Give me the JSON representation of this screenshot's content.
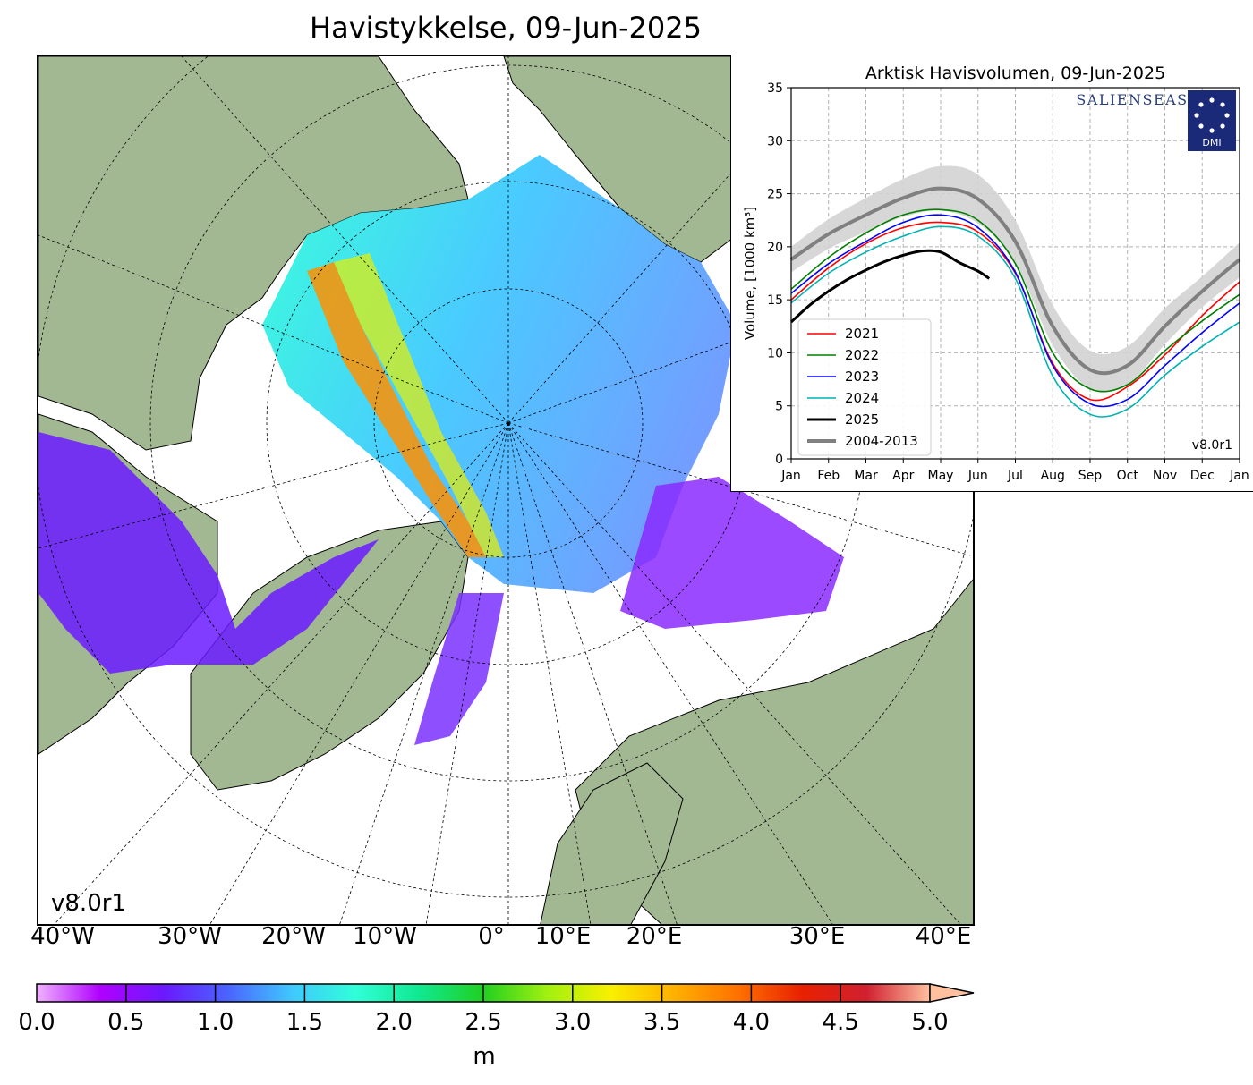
{
  "map": {
    "title": "Havistykkelse, 09-Jun-2025",
    "version": "v8.0r1",
    "lon_labels": [
      "40°W",
      "30°W",
      "20°W",
      "10°W",
      "0°",
      "10°E",
      "20°E",
      "30°E",
      "40°E"
    ],
    "colors": {
      "land": "#a2b893",
      "water": "#ffffff",
      "rivers": "#8fb2e8"
    }
  },
  "colorbar": {
    "ticks": [
      "0.0",
      "0.5",
      "1.0",
      "1.5",
      "2.0",
      "2.5",
      "3.0",
      "3.5",
      "4.0",
      "4.5",
      "5.0"
    ],
    "unit": "m",
    "stops": [
      "#f0b3ff",
      "#b000ff",
      "#6a1aff",
      "#4a64ff",
      "#40c8ff",
      "#30ffd8",
      "#10e890",
      "#20d020",
      "#a0f010",
      "#f8f000",
      "#ffb000",
      "#ff7000",
      "#e82000",
      "#d02030",
      "#ffc0a0"
    ]
  },
  "chart_data": {
    "type": "line",
    "title": "Arktisk Havisvolumen, 09-Jun-2025",
    "ylabel": "Volume, [1000 km³]",
    "ylim": [
      0,
      35
    ],
    "yticks": [
      0,
      5,
      10,
      15,
      20,
      25,
      30,
      35
    ],
    "xticks": [
      "Jan",
      "Feb",
      "Mar",
      "Apr",
      "May",
      "Jun",
      "Jul",
      "Aug",
      "Sep",
      "Oct",
      "Nov",
      "Dec",
      "Jan"
    ],
    "grid": true,
    "legend_position": "bottom-left",
    "logos": [
      "SALIENSEAS",
      "DMI"
    ],
    "version": "v8.0r1",
    "climatology": {
      "name": "2004-2013",
      "color": "#808080",
      "band_color": "#d3d3d3",
      "x": [
        0,
        1,
        2,
        3,
        4,
        5,
        6,
        7,
        8,
        9,
        10,
        11,
        12
      ],
      "mean": [
        18.8,
        21.2,
        23.0,
        24.6,
        25.5,
        24.5,
        20.5,
        12.5,
        8.4,
        8.8,
        12.5,
        15.8,
        18.8
      ],
      "upper": [
        20.0,
        22.6,
        24.6,
        26.4,
        27.6,
        26.8,
        22.5,
        14.5,
        10.2,
        10.6,
        14.2,
        17.2,
        20.4
      ],
      "lower": [
        17.6,
        19.8,
        21.4,
        22.8,
        23.4,
        22.2,
        18.5,
        10.7,
        6.6,
        7.0,
        10.8,
        14.3,
        17.1
      ]
    },
    "series": [
      {
        "name": "2021",
        "color": "#ff0000",
        "x": [
          0,
          1,
          2,
          3,
          4,
          5,
          6,
          7,
          8,
          9,
          10,
          11,
          12
        ],
        "values": [
          15.0,
          18.0,
          20.3,
          21.8,
          22.3,
          21.4,
          17.5,
          9.0,
          5.6,
          6.8,
          9.8,
          13.5,
          16.7
        ]
      },
      {
        "name": "2022",
        "color": "#008000",
        "x": [
          0,
          1,
          2,
          3,
          4,
          5,
          6,
          7,
          8,
          9,
          10,
          11,
          12
        ],
        "values": [
          16.0,
          19.0,
          21.3,
          23.0,
          23.5,
          22.5,
          18.4,
          10.0,
          6.6,
          7.0,
          10.2,
          13.0,
          15.5
        ]
      },
      {
        "name": "2023",
        "color": "#0000ff",
        "x": [
          0,
          1,
          2,
          3,
          4,
          5,
          6,
          7,
          8,
          9,
          10,
          11,
          12
        ],
        "values": [
          15.6,
          18.4,
          20.5,
          22.3,
          23.0,
          21.8,
          17.6,
          8.8,
          5.2,
          5.6,
          8.8,
          11.9,
          14.7
        ]
      },
      {
        "name": "2024",
        "color": "#00b2b2",
        "x": [
          0,
          1,
          2,
          3,
          4,
          5,
          6,
          7,
          8,
          9,
          10,
          11,
          12
        ],
        "values": [
          14.7,
          17.5,
          19.5,
          21.0,
          21.9,
          21.0,
          17.0,
          7.8,
          4.2,
          4.7,
          7.9,
          10.6,
          12.9
        ]
      },
      {
        "name": "2025",
        "color": "#000000",
        "x": [
          0,
          0.5,
          1,
          1.5,
          2,
          2.5,
          3,
          3.5,
          4,
          4.5,
          5,
          5.3
        ],
        "values": [
          12.9,
          14.5,
          15.8,
          16.9,
          17.8,
          18.6,
          19.2,
          19.6,
          19.5,
          18.5,
          17.7,
          17.0
        ]
      }
    ]
  }
}
